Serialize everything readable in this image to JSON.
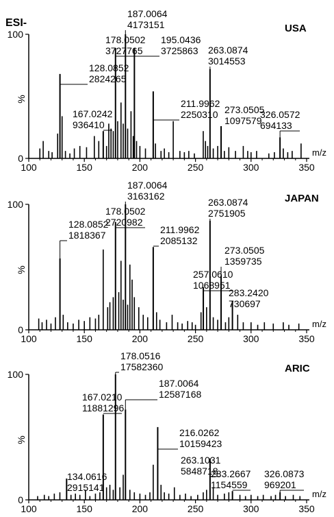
{
  "figure": {
    "ion_mode": "ESI-"
  },
  "chart_data": [
    {
      "type": "bar",
      "title": "USA",
      "xlabel": "m/z",
      "ylabel": "%",
      "xlim": [
        100,
        350
      ],
      "ylim": [
        0,
        100
      ],
      "xticks": [
        "100",
        "150",
        "200",
        "250",
        "300",
        "350"
      ],
      "yticks": [
        "0",
        "100"
      ],
      "grid": false,
      "labeled_peaks": [
        {
          "mz": "187.0064",
          "intensity": "4173151",
          "mz_value": 187.0064,
          "rel": 100
        },
        {
          "mz": "178.0502",
          "intensity": "3727765",
          "mz_value": 178.0502,
          "rel": 89
        },
        {
          "mz": "195.0436",
          "intensity": "3725863",
          "mz_value": 195.0436,
          "rel": 89
        },
        {
          "mz": "263.0874",
          "intensity": "3014553",
          "mz_value": 263.0874,
          "rel": 72
        },
        {
          "mz": "128.0852",
          "intensity": "2824265",
          "mz_value": 128.0852,
          "rel": 68
        },
        {
          "mz": "211.9962",
          "intensity": "2250310",
          "mz_value": 211.9962,
          "rel": 54
        },
        {
          "mz": "273.0505",
          "intensity": "1097579",
          "mz_value": 273.0505,
          "rel": 26
        },
        {
          "mz": "167.0242",
          "intensity": "936410",
          "mz_value": 167.0242,
          "rel": 22
        },
        {
          "mz": "326.0572",
          "intensity": "694133",
          "mz_value": 326.0572,
          "rel": 17
        }
      ],
      "minor_peaks": [
        [
          110,
          8
        ],
        [
          113,
          14
        ],
        [
          118,
          6
        ],
        [
          121,
          5
        ],
        [
          126,
          20
        ],
        [
          130,
          34
        ],
        [
          133,
          6
        ],
        [
          137,
          4
        ],
        [
          141,
          8
        ],
        [
          146,
          10
        ],
        [
          152,
          9
        ],
        [
          159,
          18
        ],
        [
          163,
          14
        ],
        [
          170,
          10
        ],
        [
          172,
          28
        ],
        [
          174,
          24
        ],
        [
          176,
          22
        ],
        [
          180,
          30
        ],
        [
          183,
          45
        ],
        [
          185,
          28
        ],
        [
          189,
          24
        ],
        [
          192,
          38
        ],
        [
          194,
          18
        ],
        [
          197,
          14
        ],
        [
          200,
          10
        ],
        [
          205,
          8
        ],
        [
          214,
          12
        ],
        [
          219,
          6
        ],
        [
          222,
          8
        ],
        [
          226,
          5
        ],
        [
          230,
          30
        ],
        [
          236,
          6
        ],
        [
          240,
          5
        ],
        [
          244,
          6
        ],
        [
          249,
          4
        ],
        [
          257,
          22
        ],
        [
          259,
          14
        ],
        [
          261,
          10
        ],
        [
          266,
          8
        ],
        [
          270,
          10
        ],
        [
          276,
          6
        ],
        [
          280,
          9
        ],
        [
          286,
          6
        ],
        [
          293,
          10
        ],
        [
          297,
          6
        ],
        [
          300,
          5
        ],
        [
          305,
          6
        ],
        [
          316,
          4
        ],
        [
          321,
          5
        ],
        [
          329,
          8
        ],
        [
          333,
          5
        ],
        [
          337,
          6
        ],
        [
          345,
          12
        ]
      ]
    },
    {
      "type": "bar",
      "title": "JAPAN",
      "xlabel": "m/z",
      "ylabel": "%",
      "xlim": [
        100,
        350
      ],
      "ylim": [
        0,
        100
      ],
      "xticks": [
        "100",
        "150",
        "200",
        "250",
        "300",
        "350"
      ],
      "yticks": [
        "0",
        "100"
      ],
      "grid": false,
      "labeled_peaks": [
        {
          "mz": "187.0064",
          "intensity": "3163162",
          "mz_value": 187.0064,
          "rel": 100
        },
        {
          "mz": "178.0502",
          "intensity": "2720982",
          "mz_value": 178.0502,
          "rel": 86
        },
        {
          "mz": "263.0874",
          "intensity": "2751905",
          "mz_value": 263.0874,
          "rel": 87
        },
        {
          "mz": "211.9962",
          "intensity": "2085132",
          "mz_value": 211.9962,
          "rel": 66
        },
        {
          "mz": "128.0852",
          "intensity": "1818367",
          "mz_value": 128.0852,
          "rel": 57
        },
        {
          "mz": "273.0505",
          "intensity": "1359735",
          "mz_value": 273.0505,
          "rel": 43
        },
        {
          "mz": "257.0610",
          "intensity": "1068951",
          "mz_value": 257.061,
          "rel": 34
        },
        {
          "mz": "283.2420",
          "intensity": "730697",
          "mz_value": 283.242,
          "rel": 23
        }
      ],
      "minor_peaks": [
        [
          109,
          9
        ],
        [
          112,
          6
        ],
        [
          116,
          8
        ],
        [
          120,
          5
        ],
        [
          124,
          10
        ],
        [
          131,
          12
        ],
        [
          135,
          6
        ],
        [
          140,
          5
        ],
        [
          145,
          8
        ],
        [
          150,
          7
        ],
        [
          155,
          10
        ],
        [
          160,
          9
        ],
        [
          163,
          12
        ],
        [
          167,
          64
        ],
        [
          171,
          18
        ],
        [
          173,
          22
        ],
        [
          176,
          26
        ],
        [
          181,
          30
        ],
        [
          183,
          55
        ],
        [
          185,
          24
        ],
        [
          189,
          20
        ],
        [
          191,
          52
        ],
        [
          193,
          40
        ],
        [
          195,
          26
        ],
        [
          199,
          18
        ],
        [
          203,
          12
        ],
        [
          207,
          10
        ],
        [
          215,
          14
        ],
        [
          218,
          8
        ],
        [
          224,
          6
        ],
        [
          229,
          12
        ],
        [
          234,
          6
        ],
        [
          238,
          5
        ],
        [
          243,
          7
        ],
        [
          247,
          6
        ],
        [
          250,
          4
        ],
        [
          255,
          14
        ],
        [
          260,
          18
        ],
        [
          266,
          10
        ],
        [
          270,
          8
        ],
        [
          277,
          6
        ],
        [
          280,
          10
        ],
        [
          288,
          12
        ],
        [
          293,
          6
        ],
        [
          300,
          6
        ],
        [
          306,
          4
        ],
        [
          312,
          6
        ],
        [
          320,
          5
        ],
        [
          329,
          6
        ],
        [
          334,
          4
        ],
        [
          343,
          5
        ]
      ]
    },
    {
      "type": "bar",
      "title": "ARIC",
      "xlabel": "m/z",
      "ylabel": "%",
      "xlim": [
        100,
        350
      ],
      "ylim": [
        0,
        100
      ],
      "xticks": [
        "100",
        "150",
        "200",
        "250",
        "300",
        "350"
      ],
      "yticks": [
        "0",
        "100"
      ],
      "grid": false,
      "labeled_peaks": [
        {
          "mz": "178.0516",
          "intensity": "17582360",
          "mz_value": 178.0516,
          "rel": 100
        },
        {
          "mz": "187.0064",
          "intensity": "12587168",
          "mz_value": 187.0064,
          "rel": 72
        },
        {
          "mz": "167.0210",
          "intensity": "11881296",
          "mz_value": 167.021,
          "rel": 68
        },
        {
          "mz": "216.0262",
          "intensity": "10159423",
          "mz_value": 216.0262,
          "rel": 58
        },
        {
          "mz": "263.1031",
          "intensity": "5848718",
          "mz_value": 263.1031,
          "rel": 33
        },
        {
          "mz": "134.0616",
          "intensity": "2915141",
          "mz_value": 134.0616,
          "rel": 17
        },
        {
          "mz": "283.2667",
          "intensity": "1154559",
          "mz_value": 283.2667,
          "rel": 7
        },
        {
          "mz": "326.0873",
          "intensity": "969201",
          "mz_value": 326.0873,
          "rel": 6
        }
      ],
      "minor_peaks": [
        [
          108,
          3
        ],
        [
          114,
          4
        ],
        [
          118,
          3
        ],
        [
          123,
          5
        ],
        [
          128,
          6
        ],
        [
          138,
          4
        ],
        [
          142,
          5
        ],
        [
          146,
          4
        ],
        [
          151,
          8
        ],
        [
          155,
          3
        ],
        [
          160,
          5
        ],
        [
          164,
          6
        ],
        [
          170,
          10
        ],
        [
          173,
          12
        ],
        [
          176,
          8
        ],
        [
          182,
          10
        ],
        [
          185,
          20
        ],
        [
          191,
          8
        ],
        [
          195,
          6
        ],
        [
          200,
          5
        ],
        [
          205,
          4
        ],
        [
          209,
          6
        ],
        [
          212,
          28
        ],
        [
          219,
          12
        ],
        [
          222,
          6
        ],
        [
          226,
          5
        ],
        [
          231,
          10
        ],
        [
          236,
          4
        ],
        [
          241,
          5
        ],
        [
          246,
          3
        ],
        [
          252,
          4
        ],
        [
          257,
          6
        ],
        [
          260,
          8
        ],
        [
          266,
          10
        ],
        [
          270,
          4
        ],
        [
          276,
          5
        ],
        [
          280,
          6
        ],
        [
          290,
          4
        ],
        [
          295,
          3
        ],
        [
          300,
          4
        ],
        [
          306,
          3
        ],
        [
          311,
          4
        ],
        [
          318,
          3
        ],
        [
          322,
          4
        ],
        [
          331,
          3
        ],
        [
          338,
          4
        ],
        [
          344,
          3
        ]
      ]
    }
  ]
}
